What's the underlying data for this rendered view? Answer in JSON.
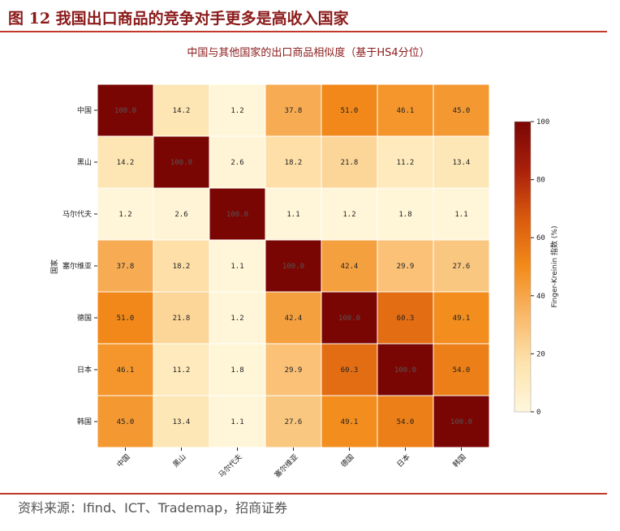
{
  "figure": {
    "title": "图 12 我国出口商品的竞争对手更多是高收入国家",
    "source": "资料来源：Ifind、ICT、Trademap，招商证券"
  },
  "chart_data": {
    "type": "heatmap",
    "title": "中国与其他国家的出口商品相似度（基于HS4分位）",
    "ylabel": "国家",
    "xlabel": "",
    "rows": [
      "中国",
      "黑山",
      "马尔代夫",
      "塞尔维亚",
      "德国",
      "日本",
      "韩国"
    ],
    "columns": [
      "中国",
      "黑山",
      "马尔代夫",
      "塞尔维亚",
      "德国",
      "日本",
      "韩国"
    ],
    "values": [
      [
        100.0,
        14.2,
        1.2,
        37.8,
        51.0,
        46.1,
        45.0
      ],
      [
        14.2,
        100.0,
        2.6,
        18.2,
        21.8,
        11.2,
        13.4
      ],
      [
        1.2,
        2.6,
        100.0,
        1.1,
        1.2,
        1.8,
        1.1
      ],
      [
        37.8,
        18.2,
        1.1,
        100.0,
        42.4,
        29.9,
        27.6
      ],
      [
        51.0,
        21.8,
        1.2,
        42.4,
        100.0,
        60.3,
        49.1
      ],
      [
        46.1,
        11.2,
        1.8,
        29.9,
        60.3,
        100.0,
        54.0
      ],
      [
        45.0,
        13.4,
        1.1,
        27.6,
        49.1,
        54.0,
        100.0
      ]
    ],
    "colorbar": {
      "label": "Finger-Kreinin 指数 (%)",
      "range": [
        0,
        100
      ],
      "ticks": [
        0,
        20,
        40,
        60,
        80,
        100
      ],
      "colormap": [
        "#fff7dc",
        "#fde3ad",
        "#f9b869",
        "#f28b1a",
        "#d95a0e",
        "#a8200b",
        "#7a0604"
      ]
    }
  }
}
